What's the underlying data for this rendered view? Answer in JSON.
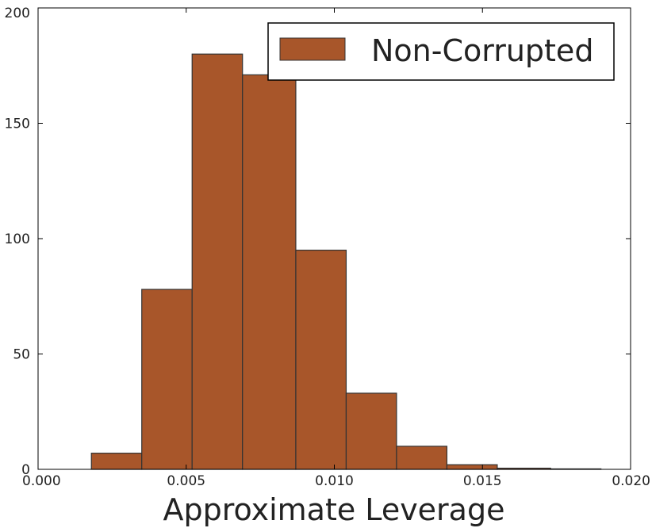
{
  "chart_data": {
    "type": "bar",
    "subtype": "histogram",
    "title": "",
    "xlabel": "Approximate Leverage",
    "ylabel": "",
    "xlim": [
      0.0,
      0.02
    ],
    "ylim": [
      0,
      200
    ],
    "xticks": [
      "0.000",
      "0.005",
      "0.010",
      "0.015",
      "0.020"
    ],
    "xtick_values": [
      0.0,
      0.005,
      0.01,
      0.015,
      0.02
    ],
    "yticks": [
      "0",
      "50",
      "100",
      "150",
      "200"
    ],
    "ytick_values": [
      0,
      50,
      100,
      150,
      200
    ],
    "grid": false,
    "legend_position": "top-right",
    "bar_color": "#a8562a",
    "edge_color": "#333333",
    "series": [
      {
        "name": "Non-Corrupted",
        "bins": [
          {
            "x0": 0.0018,
            "x1": 0.0035,
            "count": 7
          },
          {
            "x0": 0.0035,
            "x1": 0.0052,
            "count": 78
          },
          {
            "x0": 0.0052,
            "x1": 0.0069,
            "count": 180
          },
          {
            "x0": 0.0069,
            "x1": 0.0087,
            "count": 171
          },
          {
            "x0": 0.0087,
            "x1": 0.0104,
            "count": 95
          },
          {
            "x0": 0.0104,
            "x1": 0.0121,
            "count": 33
          },
          {
            "x0": 0.0121,
            "x1": 0.0138,
            "count": 10
          },
          {
            "x0": 0.0138,
            "x1": 0.0155,
            "count": 2
          },
          {
            "x0": 0.0155,
            "x1": 0.0173,
            "count": 0.5
          },
          {
            "x0": 0.0173,
            "x1": 0.019,
            "count": 0.2
          }
        ]
      }
    ]
  }
}
